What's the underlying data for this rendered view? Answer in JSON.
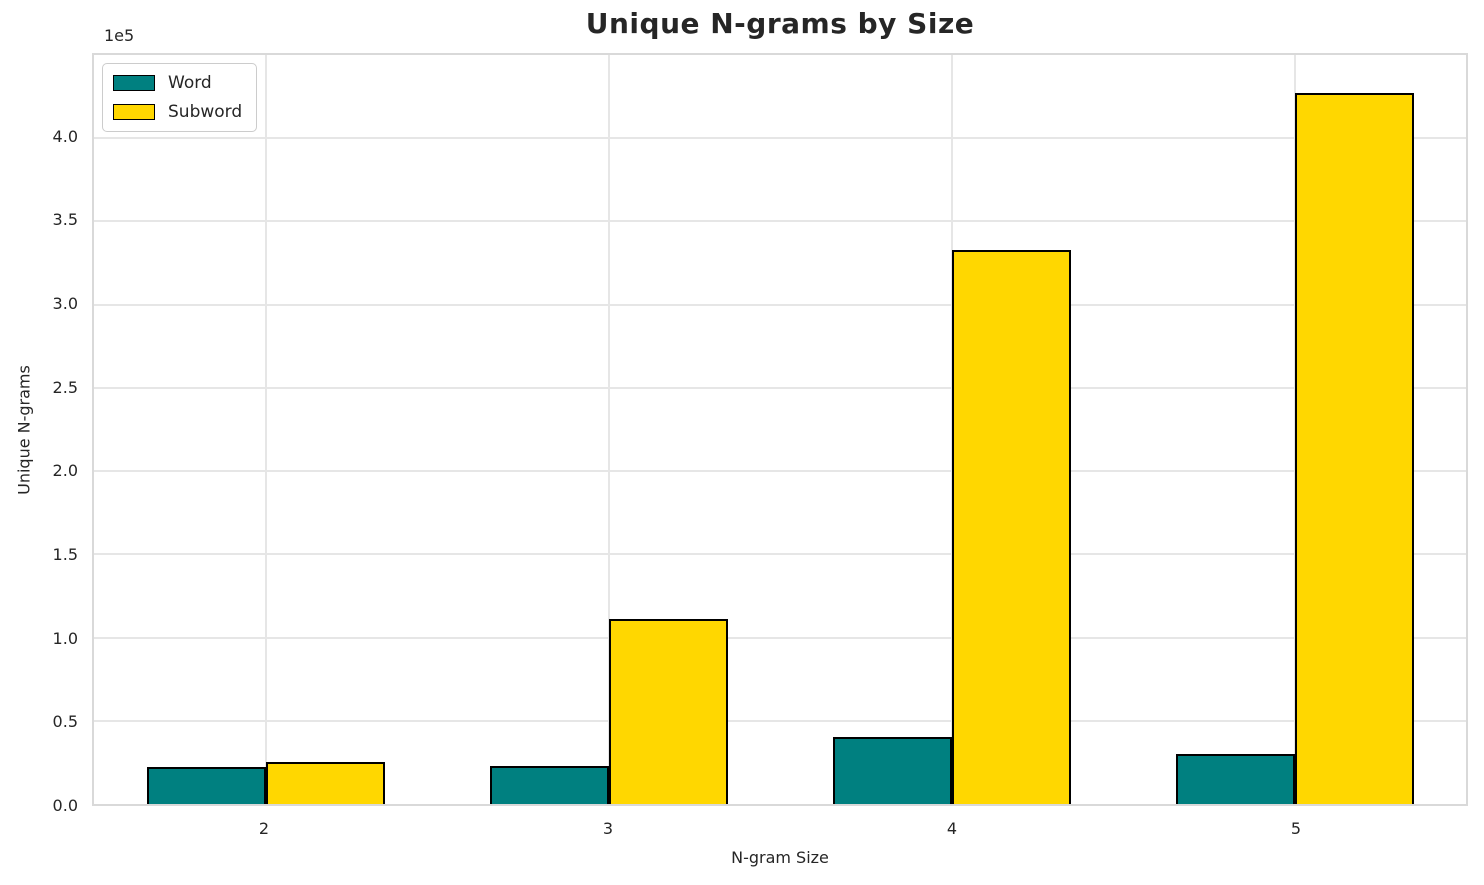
{
  "chart_data": {
    "type": "bar",
    "title": "Unique N-grams by Size",
    "xlabel": "N-gram Size",
    "ylabel": "Unique N-grams",
    "y_offset_text": "1e5",
    "categories": [
      "2",
      "3",
      "4",
      "5"
    ],
    "series": [
      {
        "name": "Word",
        "color": "#008080",
        "values": [
          22000,
          23000,
          40000,
          30000
        ]
      },
      {
        "name": "Subword",
        "color": "#FFD700",
        "values": [
          25000,
          111000,
          333000,
          427000
        ]
      }
    ],
    "ylim": [
      0,
      450000
    ],
    "yticks": {
      "values": [
        0,
        50000,
        100000,
        150000,
        200000,
        250000,
        300000,
        350000,
        400000
      ],
      "labels": [
        "0.0",
        "0.5",
        "1.0",
        "1.5",
        "2.0",
        "2.5",
        "3.0",
        "3.5",
        "4.0"
      ]
    },
    "legend": {
      "position": "upper-left",
      "entries": [
        "Word",
        "Subword"
      ]
    },
    "grid": true,
    "bar_edge_color": "#000000"
  },
  "colors": {
    "background": "#ffffff",
    "text": "#262626",
    "grid": "#e6e6e6",
    "frame": "#d9d9d9"
  }
}
